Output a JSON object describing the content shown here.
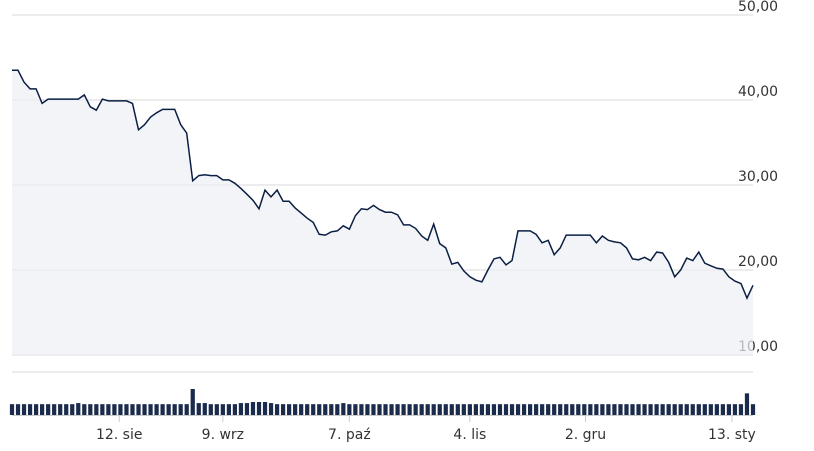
{
  "chart_data": {
    "type": "line",
    "series": [
      {
        "color": "#0b1f44",
        "values": [
          43.5,
          43.5,
          42.1,
          41.3,
          41.3,
          39.6,
          40.1,
          40.1,
          40.1,
          40.1,
          40.1,
          40.1,
          40.6,
          39.2,
          38.8,
          40.1,
          39.9,
          39.9,
          39.9,
          39.9,
          39.6,
          36.5,
          37.1,
          38.0,
          38.5,
          38.9,
          38.9,
          38.9,
          37.1,
          36.1,
          30.5,
          31.1,
          31.2,
          31.1,
          31.1,
          30.6,
          30.6,
          30.2,
          29.6,
          28.9,
          28.2,
          27.2,
          29.4,
          28.6,
          29.4,
          28.1,
          28.1,
          27.3,
          26.7,
          26.1,
          25.6,
          24.2,
          24.1,
          24.5,
          24.6,
          25.2,
          24.8,
          26.4,
          27.2,
          27.1,
          27.6,
          27.1,
          26.8,
          26.8,
          26.5,
          25.3,
          25.3,
          24.9,
          24.0,
          23.5,
          25.4,
          23.1,
          22.6,
          20.7,
          20.9,
          19.9,
          19.2,
          18.8,
          18.6,
          20.0,
          21.3,
          21.5,
          20.6,
          21.1,
          24.6,
          24.6,
          24.6,
          24.2,
          23.2,
          23.5,
          21.8,
          22.6,
          24.1,
          24.1,
          24.1,
          24.1,
          24.1,
          23.2,
          24.0,
          23.5,
          23.3,
          23.2,
          22.6,
          21.3,
          21.2,
          21.5,
          21.1,
          22.1,
          22.0,
          20.9,
          19.2,
          20.0,
          21.4,
          21.1,
          22.1,
          20.8,
          20.5,
          20.2,
          20.1,
          19.2,
          18.7,
          18.4,
          16.7,
          18.2
        ]
      }
    ],
    "volume": {
      "color": "#1a2b4c",
      "values": [
        10,
        10,
        10,
        10,
        10,
        10,
        10,
        10,
        10,
        10,
        10,
        11,
        10,
        10,
        10,
        10,
        10,
        10,
        10,
        10,
        10,
        10,
        10,
        10,
        10,
        10,
        10,
        10,
        10,
        10,
        24,
        11,
        11,
        10,
        10,
        10,
        10,
        10,
        11,
        11,
        12,
        12,
        12,
        11,
        10,
        10,
        10,
        10,
        10,
        10,
        10,
        10,
        10,
        10,
        10,
        11,
        10,
        10,
        10,
        10,
        10,
        10,
        10,
        10,
        10,
        10,
        10,
        10,
        10,
        10,
        10,
        10,
        10,
        10,
        10,
        10,
        10,
        10,
        10,
        10,
        10,
        10,
        10,
        10,
        10,
        10,
        10,
        10,
        10,
        10,
        10,
        10,
        10,
        10,
        10,
        10,
        10,
        10,
        10,
        10,
        10,
        10,
        10,
        10,
        10,
        10,
        10,
        10,
        10,
        10,
        10,
        10,
        10,
        10,
        10,
        10,
        10,
        10,
        10,
        10,
        10,
        10,
        20,
        10
      ]
    },
    "ylim": [
      10,
      50
    ],
    "yticks": [
      {
        "value": 10,
        "label": "10,00"
      },
      {
        "value": 20,
        "label": "20,00"
      },
      {
        "value": 30,
        "label": "30,00"
      },
      {
        "value": 40,
        "label": "40,00"
      },
      {
        "value": 50,
        "label": "50,00"
      }
    ],
    "xticks": [
      {
        "value": 17.8,
        "label": "12. sie"
      },
      {
        "value": 35,
        "label": "9. wrz"
      },
      {
        "value": 56,
        "label": "7. paź"
      },
      {
        "value": 76,
        "label": "4. lis"
      },
      {
        "value": 95.2,
        "label": "2. gru"
      },
      {
        "value": 119.5,
        "label": "13. sty"
      }
    ],
    "grid": true
  }
}
